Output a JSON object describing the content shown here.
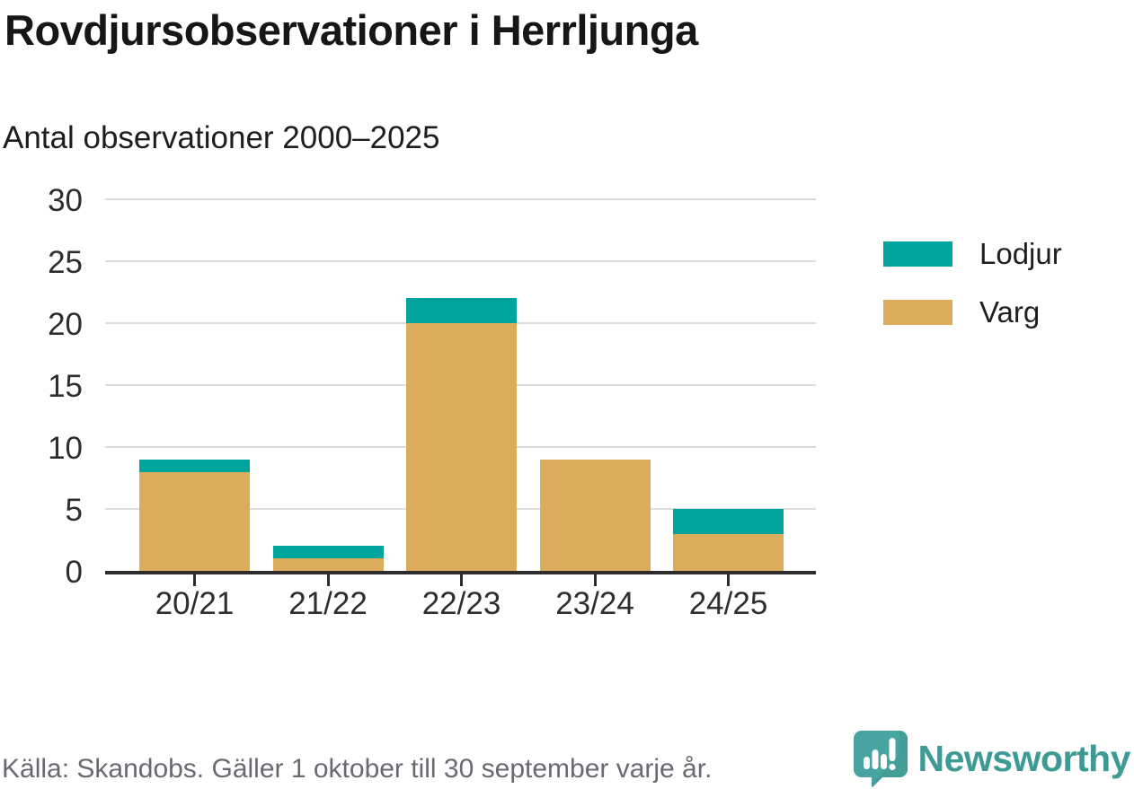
{
  "header": {
    "title": "Rovdjursobservationer i Herrljunga",
    "subtitle": "Antal observationer 2000–2025"
  },
  "chart_data": {
    "type": "bar",
    "stacked": true,
    "title": "Rovdjursobservationer i Herrljunga",
    "subtitle": "Antal observationer 2000–2025",
    "categories": [
      "20/21",
      "21/22",
      "22/23",
      "23/24",
      "24/25"
    ],
    "series": [
      {
        "name": "Varg",
        "color": "#dbac5c",
        "values": [
          8,
          1,
          20,
          9,
          3
        ]
      },
      {
        "name": "Lodjur",
        "color": "#00a49c",
        "values": [
          1,
          1,
          2,
          0,
          2
        ]
      }
    ],
    "totals": [
      9,
      2,
      22,
      9,
      5
    ],
    "xlabel": "",
    "ylabel": "",
    "ylim": [
      0,
      30
    ],
    "yticks": [
      0,
      5,
      10,
      15,
      20,
      25,
      30
    ],
    "grid": true,
    "legend_position": "right"
  },
  "legend": {
    "items": [
      {
        "label": "Lodjur",
        "color": "#00a49c"
      },
      {
        "label": "Varg",
        "color": "#dbac5c"
      }
    ]
  },
  "footer": {
    "source": "Källa: Skandobs. Gäller 1 oktober till 30 september varje år.",
    "brand": "Newsworthy"
  },
  "colors": {
    "lodjur": "#00a49c",
    "varg": "#dbac5c",
    "axis": "#2d2d2d",
    "gridline": "#dcdcdc",
    "brand_teal": "#3e9b94",
    "logo_bubble": "#47a4a0",
    "footer_text": "#696971"
  },
  "icons": {
    "brand_logo": "newsworthy-speech-bubble-chart-icon"
  }
}
